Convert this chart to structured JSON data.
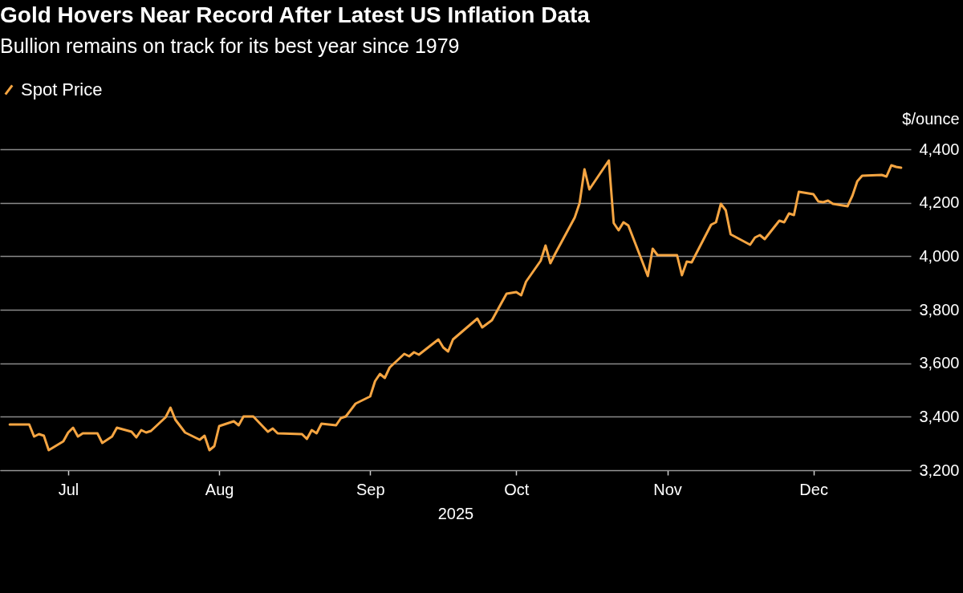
{
  "chart_data": {
    "type": "line",
    "title": "Gold Hovers Near Record After Latest US Inflation Data",
    "subtitle": "Bullion remains on track for its best year since 1979",
    "xlabel": "2025",
    "ylabel": "$/ounce",
    "x": [
      "2025-06-19",
      "2025-06-23",
      "2025-06-24",
      "2025-06-25",
      "2025-06-26",
      "2025-06-27",
      "2025-06-30",
      "2025-07-01",
      "2025-07-02",
      "2025-07-03",
      "2025-07-04",
      "2025-07-07",
      "2025-07-08",
      "2025-07-10",
      "2025-07-11",
      "2025-07-14",
      "2025-07-15",
      "2025-07-16",
      "2025-07-17",
      "2025-07-18",
      "2025-07-21",
      "2025-07-22",
      "2025-07-23",
      "2025-07-25",
      "2025-07-28",
      "2025-07-29",
      "2025-07-30",
      "2025-07-31",
      "2025-08-01",
      "2025-08-04",
      "2025-08-05",
      "2025-08-06",
      "2025-08-08",
      "2025-08-11",
      "2025-08-12",
      "2025-08-13",
      "2025-08-18",
      "2025-08-19",
      "2025-08-20",
      "2025-08-21",
      "2025-08-22",
      "2025-08-25",
      "2025-08-26",
      "2025-08-27",
      "2025-08-29",
      "2025-09-01",
      "2025-09-02",
      "2025-09-03",
      "2025-09-04",
      "2025-09-05",
      "2025-09-08",
      "2025-09-09",
      "2025-09-10",
      "2025-09-11",
      "2025-09-15",
      "2025-09-16",
      "2025-09-17",
      "2025-09-18",
      "2025-09-23",
      "2025-09-24",
      "2025-09-26",
      "2025-09-29",
      "2025-10-01",
      "2025-10-02",
      "2025-10-03",
      "2025-10-06",
      "2025-10-07",
      "2025-10-08",
      "2025-10-09",
      "2025-10-13",
      "2025-10-14",
      "2025-10-15",
      "2025-10-16",
      "2025-10-20",
      "2025-10-21",
      "2025-10-22",
      "2025-10-23",
      "2025-10-24",
      "2025-10-27",
      "2025-10-28",
      "2025-10-29",
      "2025-10-30",
      "2025-11-03",
      "2025-11-04",
      "2025-11-05",
      "2025-11-06",
      "2025-11-10",
      "2025-11-11",
      "2025-11-12",
      "2025-11-13",
      "2025-11-14",
      "2025-11-18",
      "2025-11-19",
      "2025-11-20",
      "2025-11-21",
      "2025-11-24",
      "2025-11-25",
      "2025-11-26",
      "2025-11-27",
      "2025-11-28",
      "2025-12-01",
      "2025-12-02",
      "2025-12-03",
      "2025-12-04",
      "2025-12-05",
      "2025-12-08",
      "2025-12-09",
      "2025-12-10",
      "2025-12-11",
      "2025-12-15",
      "2025-12-16",
      "2025-12-17",
      "2025-12-18",
      "2025-12-19"
    ],
    "series": [
      {
        "name": "Spot Price",
        "color": "#f5a542",
        "values": [
          3371,
          3371,
          3326,
          3335,
          3329,
          3275,
          3308,
          3341,
          3359,
          3326,
          3338,
          3338,
          3302,
          3326,
          3359,
          3344,
          3323,
          3350,
          3341,
          3347,
          3398,
          3434,
          3389,
          3341,
          3314,
          3329,
          3275,
          3290,
          3365,
          3383,
          3368,
          3401,
          3401,
          3344,
          3356,
          3338,
          3335,
          3317,
          3350,
          3338,
          3374,
          3368,
          3395,
          3401,
          3449,
          3476,
          3533,
          3560,
          3545,
          3584,
          3635,
          3626,
          3641,
          3632,
          3689,
          3659,
          3644,
          3689,
          3767,
          3734,
          3761,
          3860,
          3866,
          3854,
          3905,
          3983,
          4040,
          3974,
          4010,
          4145,
          4199,
          4325,
          4250,
          4358,
          4124,
          4097,
          4127,
          4115,
          3974,
          3926,
          4028,
          4004,
          4004,
          3929,
          3980,
          3977,
          4118,
          4127,
          4196,
          4172,
          4082,
          4043,
          4070,
          4079,
          4064,
          4133,
          4127,
          4160,
          4154,
          4241,
          4232,
          4205,
          4202,
          4208,
          4196,
          4187,
          4226,
          4280,
          4301,
          4304,
          4298,
          4340,
          4334,
          4331
        ]
      }
    ],
    "xlim": [
      "2025-06-17",
      "2025-12-21"
    ],
    "xticks": [
      {
        "value": "2025-07-01",
        "label": "Jul"
      },
      {
        "value": "2025-08-01",
        "label": "Aug"
      },
      {
        "value": "2025-09-01",
        "label": "Sep"
      },
      {
        "value": "2025-10-01",
        "label": "Oct"
      },
      {
        "value": "2025-11-01",
        "label": "Nov"
      },
      {
        "value": "2025-12-01",
        "label": "Dec"
      }
    ],
    "ylim": [
      3200,
      4400
    ],
    "yticks": [
      {
        "value": 3200,
        "label": "3,200"
      },
      {
        "value": 3400,
        "label": "3,400"
      },
      {
        "value": 3600,
        "label": "3,600"
      },
      {
        "value": 3800,
        "label": "3,800"
      },
      {
        "value": 4000,
        "label": "4,000"
      },
      {
        "value": 4200,
        "label": "4,200"
      },
      {
        "value": 4400,
        "label": "4,400"
      }
    ],
    "grid": "y",
    "legend": "top left",
    "line_style": "solid"
  }
}
